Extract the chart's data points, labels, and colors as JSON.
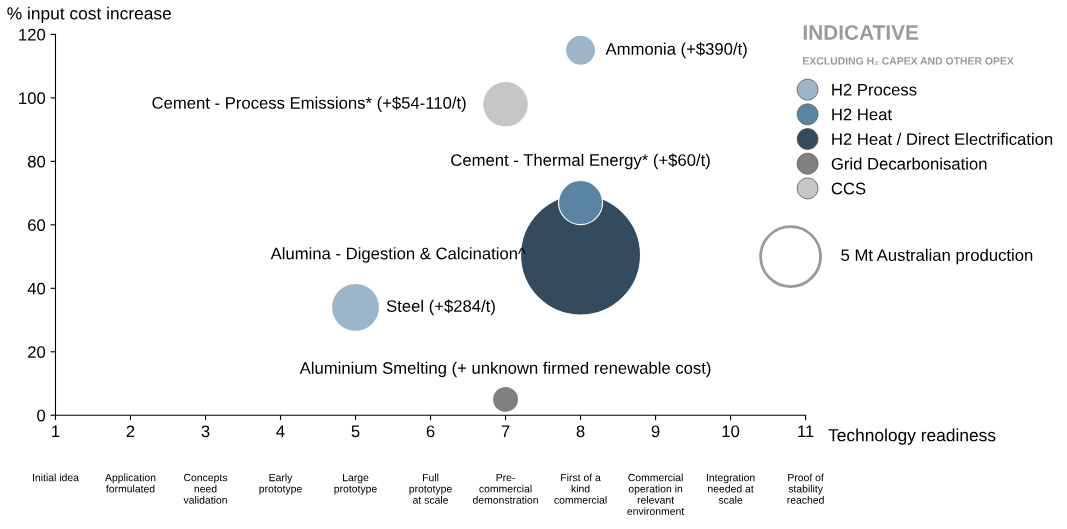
{
  "chart_data": {
    "type": "bubble",
    "title": "INDICATIVE",
    "subtitle": "EXCLUDING H₂ CAPEX AND OTHER OPEX",
    "xlabel": "Technology readiness",
    "ylabel": "% input cost increase",
    "xlim": [
      1,
      11
    ],
    "xticks": [
      1,
      2,
      3,
      4,
      5,
      6,
      7,
      8,
      9,
      10,
      11
    ],
    "ylim": [
      0,
      120
    ],
    "yticks": [
      0,
      20,
      40,
      60,
      80,
      100,
      120
    ],
    "grid": false,
    "legend": "top right",
    "size_legend": [
      {
        "value": 5,
        "label": "5 Mt Australian production"
      }
    ],
    "series": [
      {
        "name": "H2 Process",
        "color": "#9db5c9",
        "x": [
          8,
          5
        ],
        "values": [
          115,
          34
        ],
        "sizes": [
          1.25,
          3.2
        ]
      },
      {
        "name": "H2 Heat",
        "color": "#5a85a2",
        "x": [
          8
        ],
        "values": [
          67
        ],
        "sizes": [
          2.7
        ]
      },
      {
        "name": "H2 Heat / Direct Electrification",
        "color": "#344b5e",
        "x": [
          8
        ],
        "values": [
          50.5
        ],
        "sizes": [
          20
        ]
      },
      {
        "name": "Grid Decarbonisation",
        "color": "#808080",
        "x": [
          7
        ],
        "values": [
          5
        ],
        "sizes": [
          0.94
        ]
      },
      {
        "name": "CCS",
        "color": "#c6c6c6",
        "x": [
          7
        ],
        "values": [
          98
        ],
        "sizes": [
          2.9
        ]
      }
    ],
    "annotations": [
      {
        "text": "Ammonia (+$390/t)",
        "x": 8,
        "y": 115
      },
      {
        "text": "Cement - Process Emissions* (+$54-110/t)",
        "x": 7,
        "y": 98
      },
      {
        "text": "Cement - Thermal Energy* (+$60/t)",
        "x": 8,
        "y": 67
      },
      "Alumina - Digestion & Calcination^",
      {
        "text": "Steel (+$284/t)",
        "x": 5,
        "y": 34
      },
      {
        "text": "Aluminium Smelting (+ unknown firmed renewable cost)",
        "x": 7,
        "y": 5
      },
      "Initial idea",
      "Application\nformulated",
      "Concepts\nneed\nvalidation",
      "Early\nprototype",
      "Large\nprototype",
      "Full\nprototype\nat scale",
      "Pre-\ncommercial\ndemonstration",
      "First of a\nkind\ncommercial",
      "Commercial\noperation in\nrelevant\nenvironment",
      "Integration\nneeded at\nscale",
      "Proof of\nstability\nreached"
    ]
  }
}
